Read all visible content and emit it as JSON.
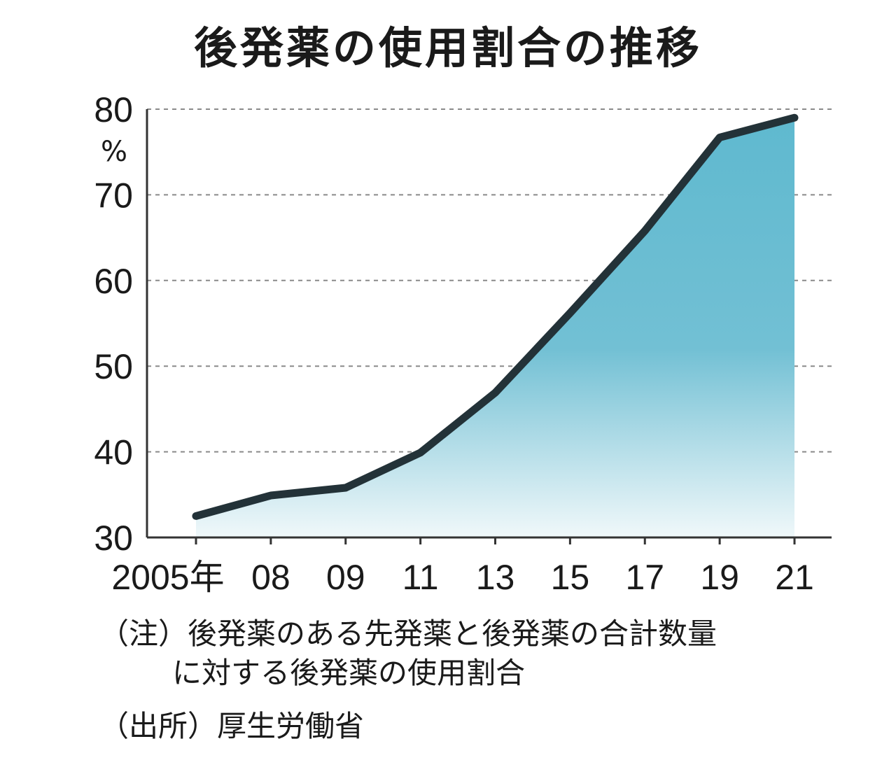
{
  "chart_data": {
    "type": "area",
    "title": "後発薬の使用割合の推移",
    "ylabel": "%",
    "x": [
      "2005年",
      "08",
      "09",
      "11",
      "13",
      "15",
      "17",
      "19",
      "21"
    ],
    "values": [
      32.5,
      34.9,
      35.8,
      39.9,
      46.9,
      56.2,
      65.8,
      76.7,
      79.0
    ],
    "yticks": [
      "30",
      "40",
      "50",
      "60",
      "70",
      "80"
    ],
    "ylim": [
      30,
      80
    ],
    "grid": "horizontal dashed",
    "colors": {
      "line": "#233238",
      "fill_top": "#5fb9cf",
      "fill_bottom": "#f0f8fa"
    }
  },
  "notes": {
    "line1": "（注）後発薬のある先発薬と後発薬の合計数量",
    "line2": "に対する後発薬の使用割合",
    "source": "（出所）厚生労働省"
  }
}
